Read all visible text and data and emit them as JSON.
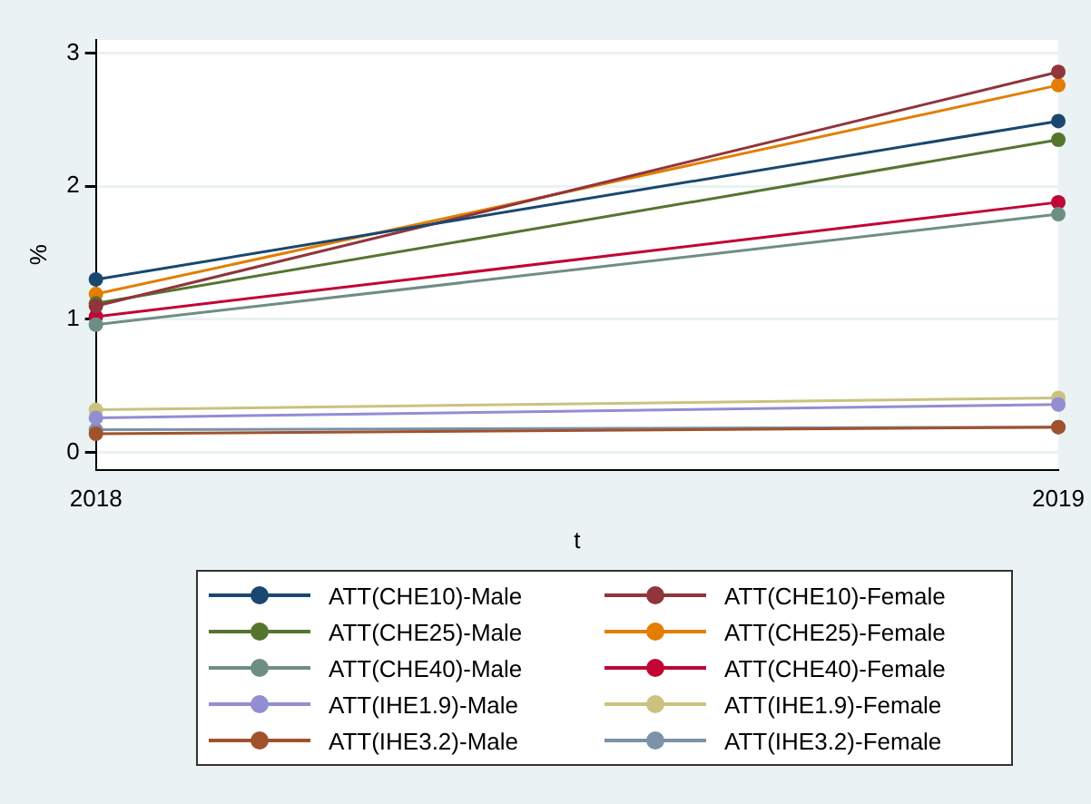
{
  "chart_data": {
    "type": "line",
    "xlabel": "t",
    "ylabel": "%",
    "x": [
      2018,
      2019
    ],
    "xlim": [
      2018,
      2019
    ],
    "xticks": [
      2018,
      2019
    ],
    "ylim": [
      -0.13,
      3.1
    ],
    "yticks": [
      0,
      1,
      2,
      3
    ],
    "grid": "y",
    "legend": "bottom",
    "marker": "circle",
    "line_style": "solid",
    "series": [
      {
        "name": "ATT(CHE10)-Male",
        "color": "#1a476f",
        "values": [
          1.3,
          2.49
        ]
      },
      {
        "name": "ATT(CHE10)-Female",
        "color": "#90353b",
        "values": [
          1.1,
          2.86
        ]
      },
      {
        "name": "ATT(CHE25)-Male",
        "color": "#55752f",
        "values": [
          1.12,
          2.35
        ]
      },
      {
        "name": "ATT(CHE25)-Female",
        "color": "#e37e00",
        "values": [
          1.19,
          2.76
        ]
      },
      {
        "name": "ATT(CHE40)-Male",
        "color": "#6e8e84",
        "values": [
          0.96,
          1.79
        ]
      },
      {
        "name": "ATT(CHE40)-Female",
        "color": "#c10534",
        "values": [
          1.02,
          1.88
        ]
      },
      {
        "name": "ATT(IHE1.9)-Male",
        "color": "#938dd2",
        "values": [
          0.26,
          0.36
        ]
      },
      {
        "name": "ATT(IHE1.9)-Female",
        "color": "#cac27e",
        "values": [
          0.32,
          0.41
        ]
      },
      {
        "name": "ATT(IHE3.2)-Male",
        "color": "#a0522d",
        "values": [
          0.14,
          0.19
        ]
      },
      {
        "name": "ATT(IHE3.2)-Female",
        "color": "#7b92a8",
        "values": [
          0.17,
          0.19
        ]
      }
    ]
  }
}
